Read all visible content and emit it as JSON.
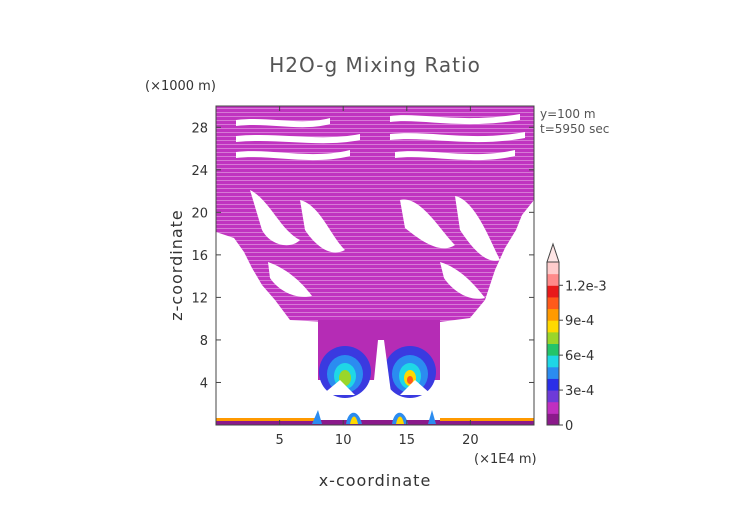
{
  "chart_data": {
    "type": "heatmap",
    "title": "H2O-g Mixing Ratio",
    "xlabel": "x-coordinate",
    "ylabel": "z-coordinate",
    "x_unit": "(×1E4 m)",
    "y_unit": "(×1000 m)",
    "annotations": [
      "y=100 m",
      "t=5950 sec"
    ],
    "xlim": [
      0,
      25
    ],
    "ylim": [
      0,
      30
    ],
    "x_ticks": [
      5,
      10,
      15,
      20
    ],
    "y_ticks": [
      4,
      8,
      12,
      16,
      20,
      24,
      28
    ],
    "colorbar": {
      "tick_labels": [
        "0",
        "3e-4",
        "6e-4",
        "9e-4",
        "1.2e-3"
      ],
      "tick_values": [
        0,
        0.0003,
        0.0006,
        0.0009,
        0.0012
      ],
      "colors": [
        "#8b1a8b",
        "#c02fc0",
        "#6e3ad8",
        "#2a2ee8",
        "#2b8cf0",
        "#1fd7e6",
        "#24c46a",
        "#9ad62a",
        "#ffd900",
        "#ff9a00",
        "#ff5a1a",
        "#e81a1a",
        "#ff8a8a",
        "#ffcccc"
      ],
      "extend": "max"
    }
  }
}
